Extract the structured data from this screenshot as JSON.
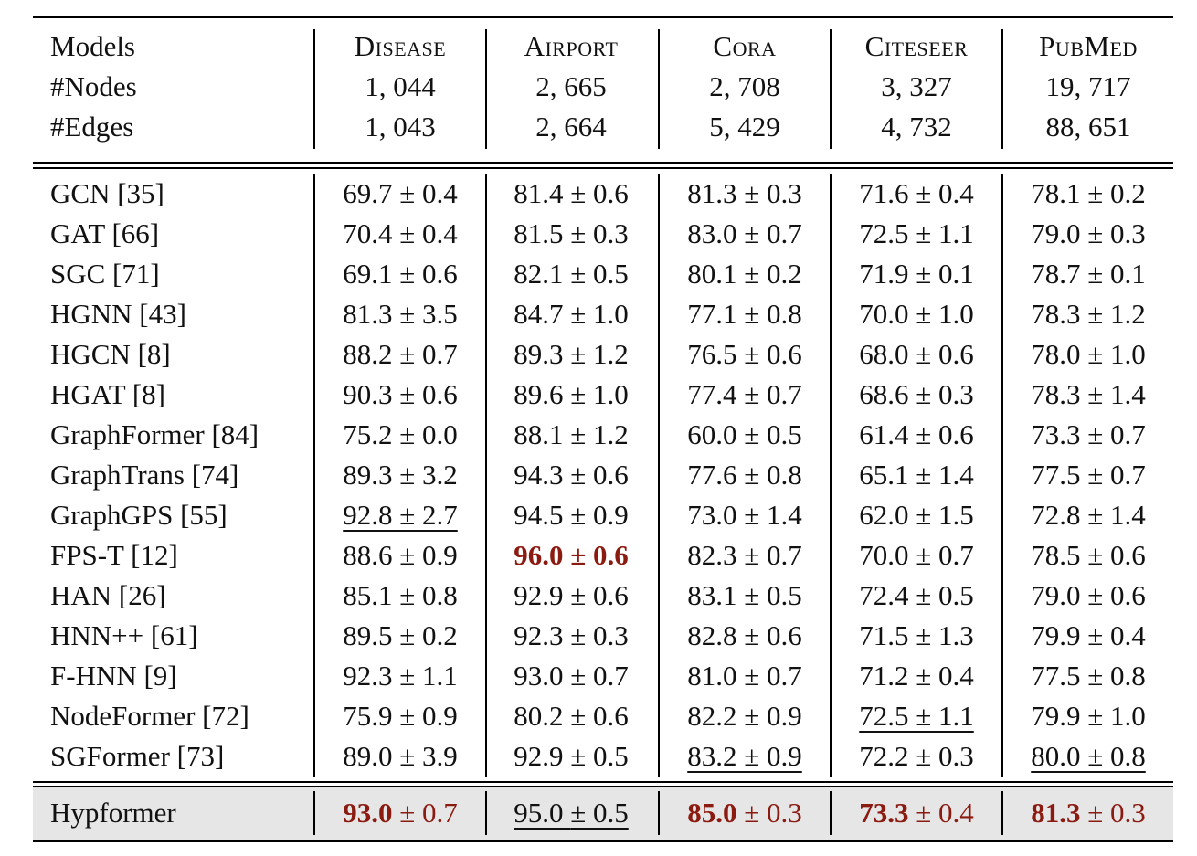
{
  "header": {
    "models_label": "Models",
    "nodes_label": "#Nodes",
    "edges_label": "#Edges",
    "datasets": [
      {
        "name": "Disease",
        "nodes": "1, 044",
        "edges": "1, 043"
      },
      {
        "name": "Airport",
        "nodes": "2, 665",
        "edges": "2, 664"
      },
      {
        "name": "Cora",
        "nodes": "2, 708",
        "edges": "5, 429"
      },
      {
        "name": "Citeseer",
        "nodes": "3, 327",
        "edges": "4, 732"
      },
      {
        "name": "PubMed",
        "nodes": "19, 717",
        "edges": "88, 651"
      }
    ]
  },
  "rows": [
    {
      "model": "GCN [35]",
      "values": [
        "69.7 ± 0.4",
        "81.4 ± 0.6",
        "81.3 ± 0.3",
        "71.6 ± 0.4",
        "78.1 ± 0.2"
      ]
    },
    {
      "model": "GAT [66]",
      "values": [
        "70.4 ± 0.4",
        "81.5 ± 0.3",
        "83.0 ± 0.7",
        "72.5 ± 1.1",
        "79.0 ± 0.3"
      ]
    },
    {
      "model": "SGC [71]",
      "values": [
        "69.1 ± 0.6",
        "82.1 ± 0.5",
        "80.1 ± 0.2",
        "71.9 ± 0.1",
        "78.7 ± 0.1"
      ]
    },
    {
      "model": "HGNN [43]",
      "values": [
        "81.3 ± 3.5",
        "84.7 ± 1.0",
        "77.1 ± 0.8",
        "70.0 ± 1.0",
        "78.3 ± 1.2"
      ]
    },
    {
      "model": "HGCN [8]",
      "values": [
        "88.2 ± 0.7",
        "89.3 ± 1.2",
        "76.5 ± 0.6",
        "68.0 ± 0.6",
        "78.0 ± 1.0"
      ]
    },
    {
      "model": "HGAT [8]",
      "values": [
        "90.3 ± 0.6",
        "89.6 ± 1.0",
        "77.4 ± 0.7",
        "68.6 ± 0.3",
        "78.3 ± 1.4"
      ]
    },
    {
      "model": "GraphFormer [84]",
      "values": [
        "75.2 ± 0.0",
        "88.1 ± 1.2",
        "60.0 ± 0.5",
        "61.4 ± 0.6",
        "73.3 ± 0.7"
      ]
    },
    {
      "model": "GraphTrans [74]",
      "values": [
        "89.3 ± 3.2",
        "94.3 ± 0.6",
        "77.6 ± 0.8",
        "65.1 ± 1.4",
        "77.5 ± 0.7"
      ]
    },
    {
      "model": "GraphGPS [55]",
      "values": [
        "92.8 ± 2.7",
        "94.5 ± 0.9",
        "73.0 ± 1.4",
        "62.0 ± 1.5",
        "72.8 ± 1.4"
      ]
    },
    {
      "model": "FPS-T [12]",
      "values": [
        "88.6 ± 0.9",
        "96.0 ± 0.6",
        "82.3 ± 0.7",
        "70.0 ± 0.7",
        "78.5 ± 0.6"
      ]
    },
    {
      "model": "HAN [26]",
      "values": [
        "85.1 ± 0.8",
        "92.9 ± 0.6",
        "83.1 ± 0.5",
        "72.4 ± 0.5",
        "79.0 ± 0.6"
      ]
    },
    {
      "model": "HNN++ [61]",
      "values": [
        "89.5 ± 0.2",
        "92.3 ± 0.3",
        "82.8 ± 0.6",
        "71.5 ± 1.3",
        "79.9 ± 0.4"
      ]
    },
    {
      "model": "F-HNN [9]",
      "values": [
        "92.3 ± 1.1",
        "93.0 ± 0.7",
        "81.0 ± 0.7",
        "71.2 ± 0.4",
        "77.5 ± 0.8"
      ]
    },
    {
      "model": "NodeFormer [72]",
      "values": [
        "75.9 ± 0.9",
        "80.2 ± 0.6",
        "82.2 ± 0.9",
        "72.5 ± 1.1",
        "79.9 ± 1.0"
      ]
    },
    {
      "model": "SGFormer [73]",
      "values": [
        "89.0 ± 3.9",
        "92.9 ± 0.5",
        "83.2 ± 0.9",
        "72.2 ± 0.3",
        "80.0 ± 0.8"
      ]
    }
  ],
  "hypformer": {
    "model": "Hypformer",
    "means": [
      "93.0",
      "95.0",
      "85.0",
      "73.3",
      "81.3"
    ],
    "stds": [
      "± 0.7",
      "± 0.5",
      "± 0.3",
      "± 0.4",
      "± 0.3"
    ]
  },
  "colors": {
    "best": "#8b1a10",
    "highlight_row": "#e6e6e6"
  }
}
